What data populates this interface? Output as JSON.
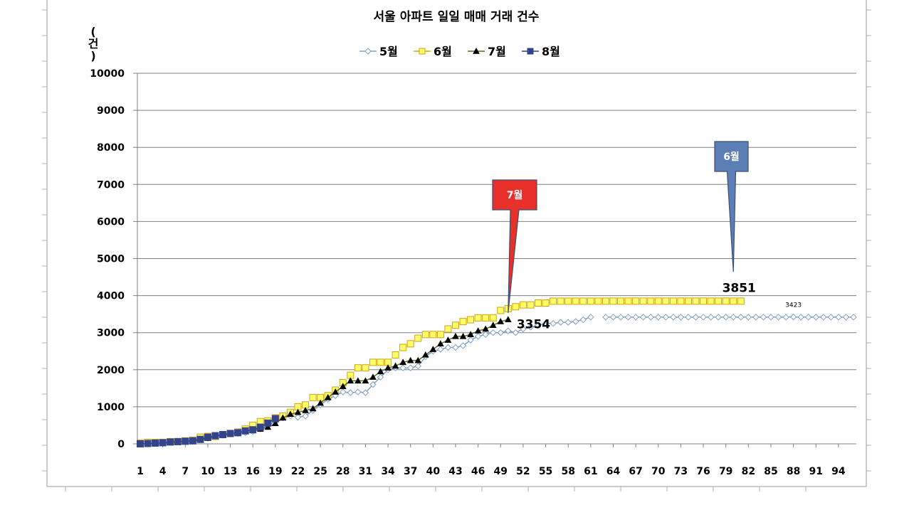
{
  "chart_data": {
    "type": "line",
    "title": "서울 아파트 일일 매매 거래 건수",
    "ylabel_chars": [
      "(",
      "건",
      ")"
    ],
    "ylim": [
      0,
      10000
    ],
    "yticks": [
      0,
      1000,
      2000,
      3000,
      4000,
      5000,
      6000,
      7000,
      8000,
      9000,
      10000
    ],
    "xlim": [
      1,
      96
    ],
    "xticks": [
      1,
      4,
      7,
      10,
      13,
      16,
      19,
      22,
      25,
      28,
      31,
      34,
      37,
      40,
      43,
      46,
      49,
      52,
      55,
      58,
      61,
      64,
      67,
      70,
      73,
      76,
      79,
      82,
      85,
      88,
      91,
      94
    ],
    "grid": true,
    "legend_position": "top",
    "series": [
      {
        "name": "5월",
        "color": "#7f9fc7",
        "fill": "#ffffff",
        "marker": "diamond",
        "line": true,
        "x": [
          1,
          2,
          3,
          4,
          5,
          6,
          7,
          8,
          9,
          10,
          11,
          12,
          13,
          14,
          15,
          16,
          17,
          18,
          19,
          20,
          21,
          22,
          23,
          24,
          25,
          26,
          27,
          28,
          29,
          30,
          31,
          32,
          33,
          34,
          35,
          36,
          37,
          38,
          39,
          40,
          41,
          42,
          43,
          44,
          45,
          46,
          47,
          48,
          49,
          50,
          51,
          52,
          53,
          54,
          55,
          56,
          57,
          58,
          59,
          60,
          61,
          63,
          64,
          65,
          66,
          67,
          68,
          69,
          70,
          71,
          72,
          73,
          74,
          75,
          76,
          77,
          78,
          79,
          80,
          81,
          82,
          83,
          84,
          85,
          86,
          87,
          88,
          89,
          90,
          91,
          92,
          93,
          94,
          95,
          96
        ],
        "values": [
          0,
          10,
          20,
          30,
          40,
          60,
          80,
          100,
          130,
          150,
          200,
          230,
          260,
          280,
          300,
          330,
          400,
          500,
          600,
          700,
          750,
          720,
          750,
          900,
          1050,
          1200,
          1300,
          1400,
          1380,
          1400,
          1380,
          1600,
          1800,
          2000,
          2050,
          2050,
          2050,
          2100,
          2350,
          2500,
          2550,
          2600,
          2600,
          2650,
          2800,
          2900,
          2950,
          3000,
          3000,
          3050,
          3000,
          3100,
          3150,
          3200,
          3250,
          3250,
          3280,
          3280,
          3300,
          3350,
          3420,
          3420,
          3420,
          3420,
          3420,
          3420,
          3420,
          3420,
          3420,
          3420,
          3420,
          3420,
          3420,
          3420,
          3420,
          3420,
          3420,
          3420,
          3420,
          3420,
          3420,
          3420,
          3420,
          3420,
          3420,
          3420,
          3423,
          3420,
          3420,
          3420,
          3420,
          3420,
          3420,
          3420,
          3420
        ]
      },
      {
        "name": "6월",
        "color": "#d4a017",
        "fill": "#ffff66",
        "marker": "square",
        "line": false,
        "x": [
          1,
          2,
          3,
          4,
          5,
          6,
          7,
          8,
          9,
          10,
          11,
          12,
          13,
          14,
          15,
          16,
          17,
          18,
          19,
          20,
          21,
          22,
          23,
          24,
          25,
          26,
          27,
          28,
          29,
          30,
          31,
          32,
          33,
          34,
          35,
          36,
          37,
          38,
          39,
          40,
          41,
          42,
          43,
          44,
          45,
          46,
          47,
          48,
          49,
          50,
          51,
          52,
          53,
          54,
          55,
          56,
          57,
          58,
          59,
          60,
          61,
          62,
          63,
          64,
          65,
          66,
          67,
          68,
          69,
          70,
          71,
          72,
          73,
          74,
          75,
          76,
          77,
          78,
          79,
          80,
          81
        ],
        "values": [
          20,
          40,
          40,
          40,
          60,
          60,
          80,
          100,
          180,
          200,
          200,
          250,
          280,
          320,
          400,
          500,
          600,
          620,
          700,
          750,
          850,
          1000,
          1050,
          1250,
          1250,
          1300,
          1450,
          1650,
          1850,
          2050,
          2050,
          2200,
          2200,
          2200,
          2400,
          2600,
          2700,
          2850,
          2950,
          2950,
          2950,
          3100,
          3200,
          3300,
          3350,
          3400,
          3400,
          3400,
          3600,
          3650,
          3700,
          3750,
          3750,
          3800,
          3800,
          3850,
          3850,
          3850,
          3850,
          3850,
          3850,
          3850,
          3850,
          3851,
          3851,
          3851,
          3851,
          3851,
          3851,
          3851,
          3851,
          3851,
          3851,
          3851,
          3851,
          3851,
          3851,
          3851,
          3851,
          3851,
          3851
        ]
      },
      {
        "name": "7월",
        "color": "#5b6e1e",
        "fill": "#000000",
        "marker": "triangle",
        "line": true,
        "x": [
          1,
          2,
          3,
          4,
          5,
          6,
          7,
          8,
          9,
          10,
          11,
          12,
          13,
          14,
          15,
          16,
          17,
          18,
          19,
          20,
          21,
          22,
          23,
          24,
          25,
          26,
          27,
          28,
          29,
          30,
          31,
          32,
          33,
          34,
          35,
          36,
          37,
          38,
          39,
          40,
          41,
          42,
          43,
          44,
          45,
          46,
          47,
          48,
          49,
          50
        ],
        "values": [
          0,
          10,
          20,
          30,
          40,
          50,
          60,
          80,
          100,
          150,
          200,
          250,
          280,
          300,
          350,
          380,
          400,
          450,
          550,
          700,
          800,
          850,
          900,
          950,
          1100,
          1250,
          1400,
          1550,
          1700,
          1700,
          1700,
          1800,
          1950,
          2050,
          2100,
          2200,
          2250,
          2250,
          2400,
          2550,
          2700,
          2800,
          2900,
          2900,
          2950,
          3050,
          3100,
          3200,
          3300,
          3354
        ]
      },
      {
        "name": "8월",
        "color": "#34448a",
        "fill": "#34448a",
        "marker": "square",
        "line": true,
        "x": [
          1,
          2,
          3,
          4,
          5,
          6,
          7,
          8,
          9,
          10,
          11,
          12,
          13,
          14,
          15,
          16,
          17,
          18,
          19
        ],
        "values": [
          0,
          10,
          20,
          30,
          50,
          60,
          70,
          80,
          120,
          180,
          220,
          250,
          280,
          300,
          350,
          380,
          450,
          560,
          680
        ]
      }
    ],
    "data_labels": [
      {
        "text": "3354",
        "x": 50,
        "y": 3354
      },
      {
        "text": "3851",
        "x": 80,
        "y": 3851
      },
      {
        "text": "3423",
        "x": 88,
        "y": 3423
      }
    ],
    "callouts": [
      {
        "text": "7월",
        "x": 50,
        "y": 3650,
        "color": "#e8302a"
      },
      {
        "text": "6월",
        "x": 80,
        "y": 4250,
        "color": "#5b7fb5"
      }
    ]
  }
}
